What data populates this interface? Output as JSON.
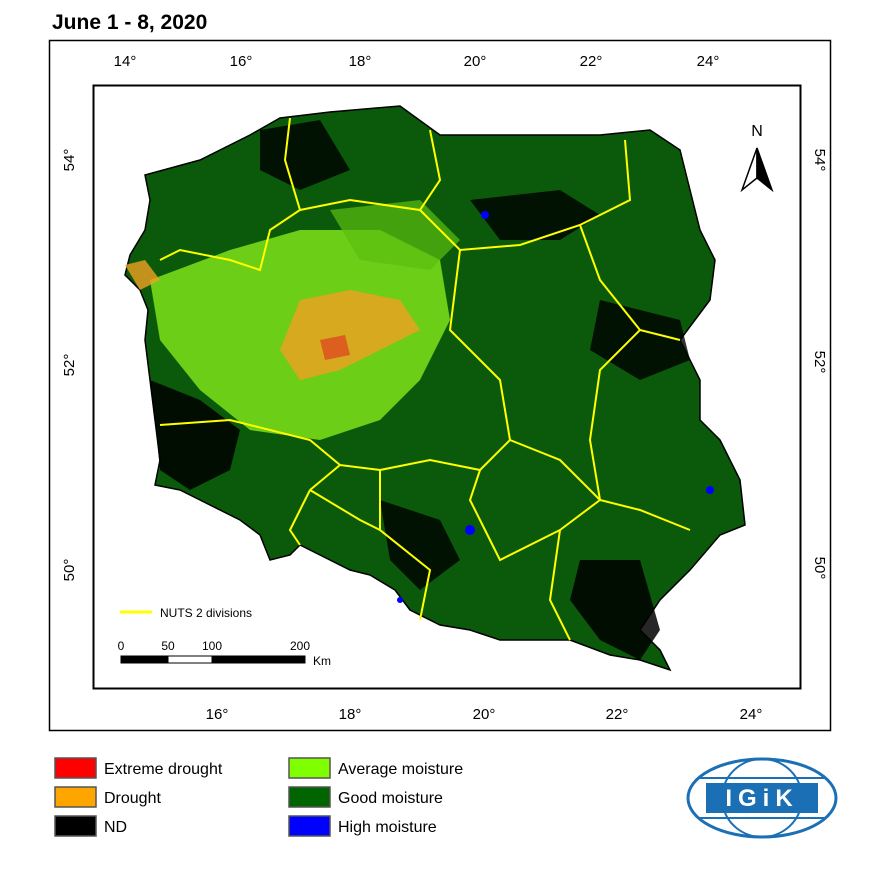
{
  "title": "June 1 - 8, 2020",
  "axes": {
    "top": [
      "14°",
      "16°",
      "18°",
      "20°",
      "22°",
      "24°"
    ],
    "bottom": [
      "16°",
      "18°",
      "20°",
      "22°",
      "24°"
    ],
    "left": [
      "54°",
      "52°",
      "50°"
    ],
    "right": [
      "54°",
      "52°",
      "50°"
    ]
  },
  "north": "N",
  "nuts_legend": "NUTS 2 divisions",
  "scale_bar": {
    "labels": [
      "0",
      "50",
      "100",
      "200"
    ],
    "unit": "Km"
  },
  "legend": [
    {
      "label": "Extreme drought",
      "color": "#ff0000"
    },
    {
      "label": "Drought",
      "color": "#ffa500"
    },
    {
      "label": "ND",
      "color": "#000000"
    },
    {
      "label": "Average moisture",
      "color": "#80ff00"
    },
    {
      "label": "Good moisture",
      "color": "#006400"
    },
    {
      "label": "High moisture",
      "color": "#0000ff"
    }
  ],
  "logo": "IGiK"
}
